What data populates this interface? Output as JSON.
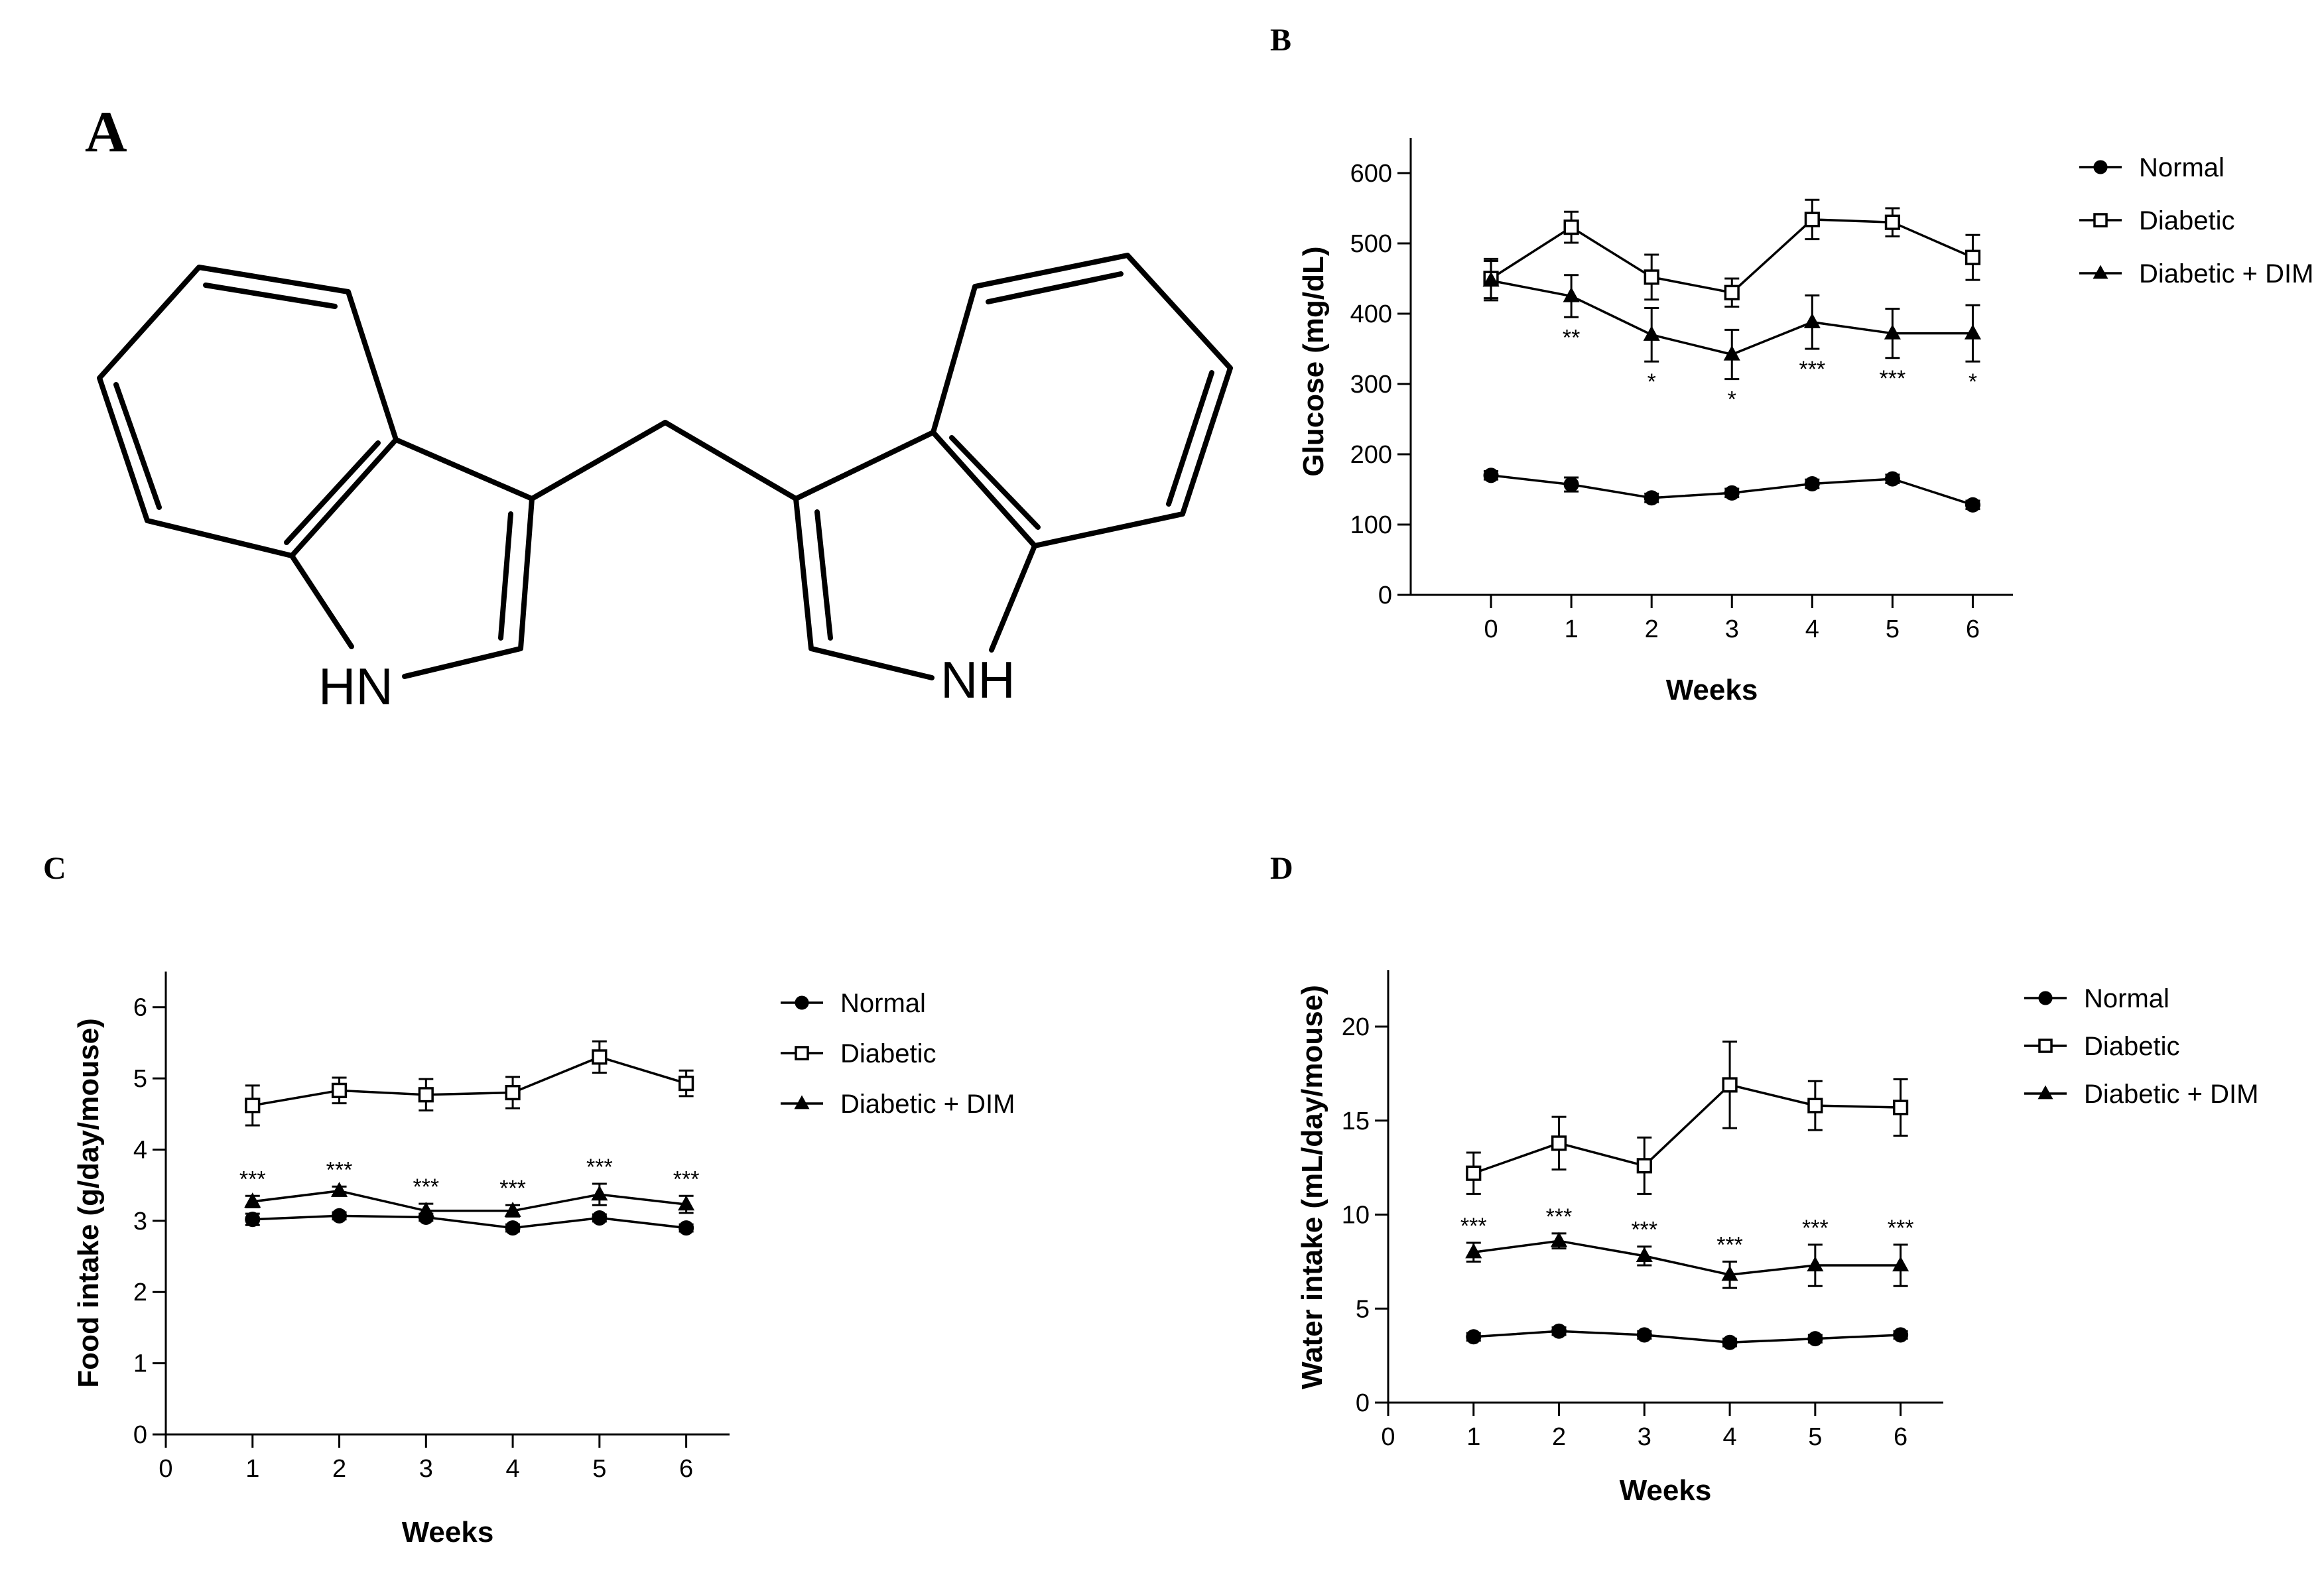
{
  "panels": {
    "A": "A",
    "B": "B",
    "C": "C",
    "D": "D"
  },
  "molecule": {
    "atom_left": "HN",
    "atom_right": "NH"
  },
  "legend": [
    "Normal",
    "Diabetic",
    "Diabetic + DIM"
  ],
  "chart_data": [
    {
      "panel": "B",
      "type": "line",
      "xlabel": "Weeks",
      "ylabel": "Glucose (mg/dL)",
      "x": [
        0,
        1,
        2,
        3,
        4,
        5,
        6
      ],
      "xlim": [
        -1,
        6.5
      ],
      "ylim": [
        0,
        650
      ],
      "xticks": [
        0,
        1,
        2,
        3,
        4,
        5,
        6
      ],
      "yticks": [
        0,
        100,
        200,
        300,
        400,
        500,
        600
      ],
      "series": [
        {
          "name": "Normal",
          "marker": "circle",
          "values": [
            170,
            157,
            138,
            145,
            158,
            165,
            128
          ],
          "errors": [
            6,
            10,
            6,
            6,
            6,
            6,
            6
          ]
        },
        {
          "name": "Diabetic",
          "marker": "square-open",
          "values": [
            450,
            523,
            452,
            430,
            534,
            530,
            480
          ],
          "errors": [
            28,
            22,
            32,
            20,
            28,
            20,
            32
          ]
        },
        {
          "name": "Diabetic + DIM",
          "marker": "triangle",
          "values": [
            447,
            425,
            370,
            342,
            388,
            372,
            372
          ],
          "errors": [
            28,
            30,
            38,
            35,
            38,
            35,
            40
          ]
        }
      ],
      "annotations": [
        {
          "x": 1,
          "text": "**"
        },
        {
          "x": 2,
          "text": "*"
        },
        {
          "x": 3,
          "text": "*"
        },
        {
          "x": 4,
          "text": "***"
        },
        {
          "x": 5,
          "text": "***"
        },
        {
          "x": 6,
          "text": "*"
        }
      ],
      "legend_position": "right"
    },
    {
      "panel": "C",
      "type": "line",
      "xlabel": "Weeks",
      "ylabel": "Food intake (g/day/mouse)",
      "x": [
        1,
        2,
        3,
        4,
        5,
        6
      ],
      "xlim": [
        0,
        6.5
      ],
      "ylim": [
        0,
        6.5
      ],
      "xticks": [
        0,
        1,
        2,
        3,
        4,
        5,
        6
      ],
      "yticks": [
        0,
        1,
        2,
        3,
        4,
        5,
        6
      ],
      "series": [
        {
          "name": "Normal",
          "marker": "circle",
          "values": [
            3.02,
            3.07,
            3.05,
            2.9,
            3.04,
            2.9
          ],
          "errors": [
            0.08,
            0.05,
            0.05,
            0.05,
            0.05,
            0.05
          ]
        },
        {
          "name": "Diabetic",
          "marker": "square-open",
          "values": [
            4.62,
            4.83,
            4.77,
            4.8,
            5.3,
            4.93
          ],
          "errors": [
            0.28,
            0.18,
            0.22,
            0.22,
            0.22,
            0.18
          ]
        },
        {
          "name": "Diabetic + DIM",
          "marker": "triangle",
          "values": [
            3.27,
            3.42,
            3.14,
            3.14,
            3.37,
            3.23
          ],
          "errors": [
            0.08,
            0.06,
            0.1,
            0.08,
            0.15,
            0.12
          ]
        }
      ],
      "annotations": [
        {
          "x": 1,
          "text": "***"
        },
        {
          "x": 2,
          "text": "***"
        },
        {
          "x": 3,
          "text": "***"
        },
        {
          "x": 4,
          "text": "***"
        },
        {
          "x": 5,
          "text": "***"
        },
        {
          "x": 6,
          "text": "***"
        }
      ],
      "legend_position": "right"
    },
    {
      "panel": "D",
      "type": "line",
      "xlabel": "Weeks",
      "ylabel": "Water intake (mL/day/mouse)",
      "x": [
        1,
        2,
        3,
        4,
        5,
        6
      ],
      "xlim": [
        0,
        6.5
      ],
      "ylim": [
        0,
        23
      ],
      "xticks": [
        0,
        1,
        2,
        3,
        4,
        5,
        6
      ],
      "yticks": [
        0,
        5,
        10,
        15,
        20
      ],
      "series": [
        {
          "name": "Normal",
          "marker": "circle",
          "values": [
            3.5,
            3.8,
            3.6,
            3.2,
            3.4,
            3.6
          ],
          "errors": [
            0.2,
            0.2,
            0.2,
            0.2,
            0.2,
            0.2
          ]
        },
        {
          "name": "Diabetic",
          "marker": "square-open",
          "values": [
            12.2,
            13.8,
            12.6,
            16.9,
            15.8,
            15.7
          ],
          "errors": [
            1.1,
            1.4,
            1.5,
            2.3,
            1.3,
            1.5
          ]
        },
        {
          "name": "Diabetic + DIM",
          "marker": "triangle",
          "values": [
            8.0,
            8.6,
            7.8,
            6.8,
            7.3,
            7.3
          ],
          "errors": [
            0.5,
            0.4,
            0.5,
            0.7,
            1.1,
            1.1
          ]
        }
      ],
      "annotations": [
        {
          "x": 1,
          "text": "***"
        },
        {
          "x": 2,
          "text": "***"
        },
        {
          "x": 3,
          "text": "***"
        },
        {
          "x": 4,
          "text": "***"
        },
        {
          "x": 5,
          "text": "***"
        },
        {
          "x": 6,
          "text": "***"
        }
      ],
      "legend_position": "right"
    }
  ]
}
